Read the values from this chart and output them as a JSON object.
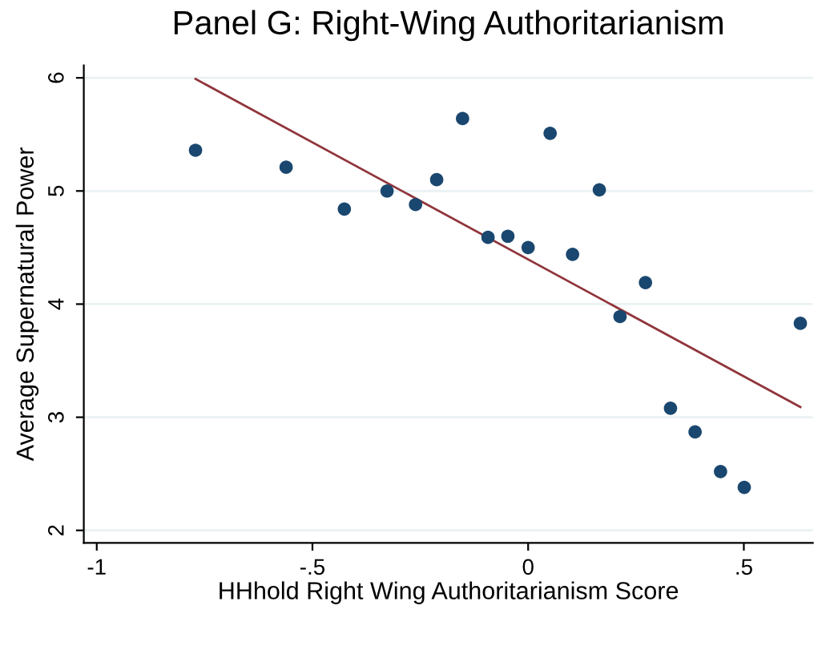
{
  "chart_data": {
    "type": "scatter",
    "title": "Panel G: Right-Wing Authoritarianism",
    "xlabel": "HHhold Right Wing Authoritarianism Score",
    "ylabel": "Average Supernatural Power",
    "series": [
      {
        "color": "#1a476f",
        "marker": "circle",
        "x": [
          -0.771,
          -0.561,
          -0.426,
          -0.327,
          -0.261,
          -0.212,
          -0.152,
          -0.093,
          -0.047,
          0,
          0.051,
          0.103,
          0.165,
          0.213,
          0.272,
          0.33,
          0.387,
          0.446,
          0.501,
          0.631
        ],
        "values": [
          5.36,
          5.21,
          4.84,
          5.0,
          4.88,
          5.1,
          5.64,
          4.59,
          4.6,
          4.5,
          5.51,
          4.44,
          5.01,
          3.89,
          4.19,
          3.08,
          2.87,
          2.52,
          2.38,
          3.83
        ]
      },
      {
        "type": "line",
        "color": "#90353b",
        "x": [
          -0.771,
          0.631
        ],
        "values": [
          5.99,
          3.09
        ]
      }
    ],
    "xlim": [
      -1.03,
      0.66
    ],
    "ylim": [
      1.89,
      6.11
    ],
    "xticks": [
      {
        "value": -1,
        "label": "-1"
      },
      {
        "value": -0.5,
        "label": "-.5"
      },
      {
        "value": 0,
        "label": "0"
      },
      {
        "value": 0.5,
        "label": ".5"
      }
    ],
    "yticks": [
      2,
      3,
      4,
      5,
      6
    ],
    "grid": "y"
  }
}
